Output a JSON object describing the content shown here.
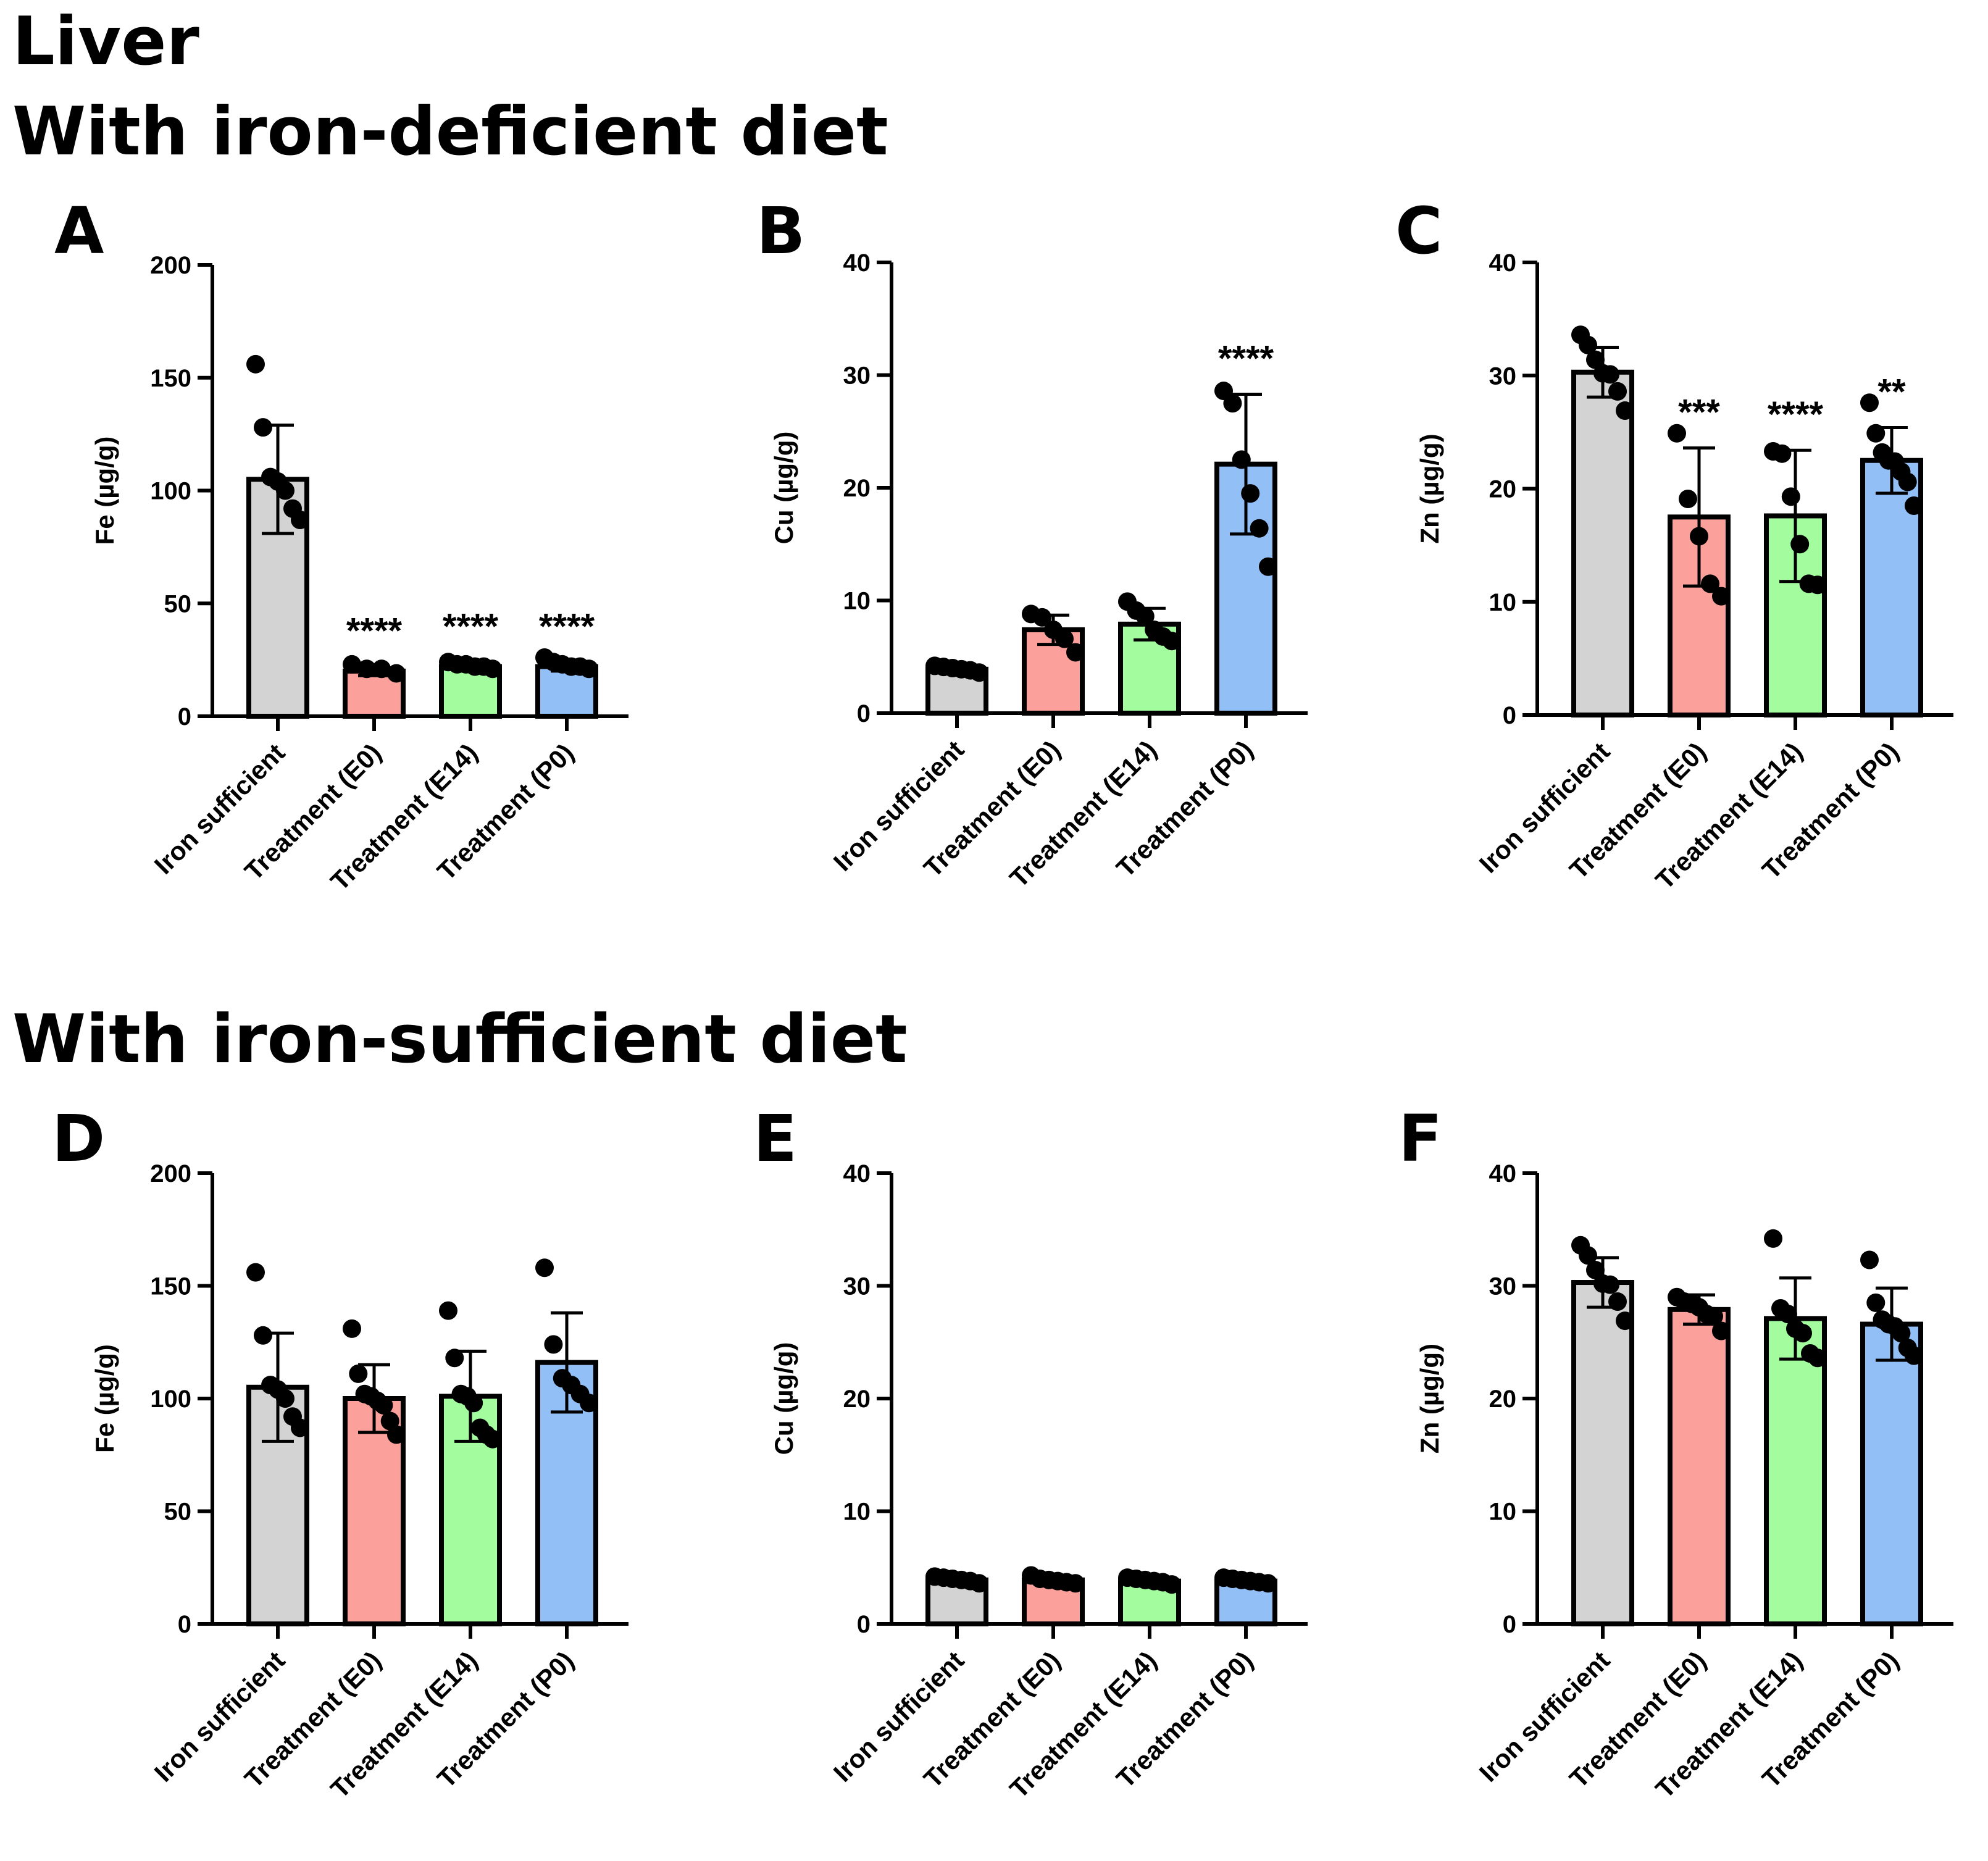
{
  "headings": {
    "tissue": "Liver",
    "deficient": "With iron-deficient diet",
    "sufficient": "With iron-sufficient diet"
  },
  "colors": {
    "iron_sufficient": "#d3d3d3",
    "treatment_e0": "#fca09b",
    "treatment_e14": "#a3fd9f",
    "treatment_p0": "#93bff7",
    "ink": "#000000"
  },
  "chart_data": [
    {
      "panel": "A",
      "type": "bar",
      "diet": "With iron-deficient diet",
      "ylabel": "Fe (µg/g)",
      "ylim": [
        0,
        200
      ],
      "yticks": [
        0,
        50,
        100,
        150,
        200
      ],
      "categories": [
        "Iron sufficient",
        "Treatment (E0)",
        "Treatment (E14)",
        "Treatment (P0)"
      ],
      "values": [
        105,
        20,
        22,
        22
      ],
      "sd": [
        24,
        2,
        2,
        2
      ],
      "points": [
        [
          156,
          128,
          106,
          104,
          100,
          92,
          87
        ],
        [
          23,
          21,
          21,
          19
        ],
        [
          24,
          23,
          23,
          22,
          22,
          21
        ],
        [
          26,
          24,
          23,
          22,
          22,
          21
        ]
      ],
      "significance": [
        "",
        "****",
        "****",
        "****"
      ]
    },
    {
      "panel": "B",
      "type": "bar",
      "diet": "With iron-deficient diet",
      "ylabel": "Cu (µg/g)",
      "ylim": [
        0,
        40
      ],
      "yticks": [
        0,
        10,
        20,
        30,
        40
      ],
      "categories": [
        "Iron sufficient",
        "Treatment (E0)",
        "Treatment (E14)",
        "Treatment (P0)"
      ],
      "values": [
        3.9,
        7.4,
        7.9,
        22.1
      ],
      "sd": [
        0.3,
        1.3,
        1.4,
        6.2
      ],
      "points": [
        [
          4.2,
          4.1,
          4.0,
          3.9,
          3.8,
          3.6
        ],
        [
          8.8,
          8.5,
          7.4,
          6.6,
          5.4
        ],
        [
          9.9,
          9.1,
          8.6,
          7.4,
          6.8,
          6.4
        ],
        [
          28.6,
          27.5,
          22.5,
          19.5,
          16.4,
          13.0
        ]
      ],
      "significance": [
        "",
        "",
        "",
        "****"
      ]
    },
    {
      "panel": "C",
      "type": "bar",
      "diet": "With iron-deficient diet",
      "ylabel": "Zn (µg/g)",
      "ylim": [
        0,
        40
      ],
      "yticks": [
        0,
        10,
        20,
        30,
        40
      ],
      "categories": [
        "Iron sufficient",
        "Treatment (E0)",
        "Treatment (E14)",
        "Treatment (P0)"
      ],
      "values": [
        30.3,
        17.5,
        17.6,
        22.5
      ],
      "sd": [
        2.2,
        6.1,
        5.8,
        2.9
      ],
      "points": [
        [
          33.6,
          32.7,
          31.4,
          30.2,
          30.1,
          28.6,
          26.9
        ],
        [
          24.9,
          19.1,
          15.8,
          11.6,
          10.5
        ],
        [
          23.3,
          23.1,
          19.3,
          15.1,
          11.6,
          11.5
        ],
        [
          27.6,
          24.9,
          23.2,
          22.5,
          22.4,
          21.5,
          20.6,
          18.5
        ]
      ],
      "significance": [
        "",
        "***",
        "****",
        "**"
      ]
    },
    {
      "panel": "D",
      "type": "bar",
      "diet": "With iron-sufficient diet",
      "ylabel": "Fe (µg/g)",
      "ylim": [
        0,
        200
      ],
      "yticks": [
        0,
        50,
        100,
        150,
        200
      ],
      "categories": [
        "Iron sufficient",
        "Treatment (E0)",
        "Treatment (E14)",
        "Treatment (P0)"
      ],
      "values": [
        105,
        100,
        101,
        116
      ],
      "sd": [
        24,
        15,
        20,
        22
      ],
      "points": [
        [
          156,
          128,
          106,
          104,
          100,
          92,
          87
        ],
        [
          131,
          111,
          102,
          101,
          99,
          97,
          90,
          84
        ],
        [
          139,
          118,
          102,
          101,
          98,
          87,
          84,
          82
        ],
        [
          158,
          124,
          109,
          106,
          102,
          98
        ]
      ],
      "significance": [
        "",
        "",
        "",
        ""
      ]
    },
    {
      "panel": "E",
      "type": "bar",
      "diet": "With iron-sufficient diet",
      "ylabel": "Cu (µg/g)",
      "ylim": [
        0,
        40
      ],
      "yticks": [
        0,
        10,
        20,
        30,
        40
      ],
      "categories": [
        "Iron sufficient",
        "Treatment (E0)",
        "Treatment (E14)",
        "Treatment (P0)"
      ],
      "values": [
        3.9,
        3.9,
        3.8,
        3.8
      ],
      "sd": [
        0.3,
        0.3,
        0.3,
        0.3
      ],
      "points": [
        [
          4.2,
          4.1,
          4.0,
          3.9,
          3.8,
          3.6
        ],
        [
          4.3,
          4.0,
          3.9,
          3.8,
          3.7,
          3.6
        ],
        [
          4.1,
          4.0,
          3.9,
          3.8,
          3.7,
          3.5
        ],
        [
          4.1,
          4.0,
          3.9,
          3.8,
          3.7,
          3.6
        ]
      ],
      "significance": [
        "",
        "",
        "",
        ""
      ]
    },
    {
      "panel": "F",
      "type": "bar",
      "diet": "With iron-sufficient diet",
      "ylabel": "Zn (µg/g)",
      "ylim": [
        0,
        40
      ],
      "yticks": [
        0,
        10,
        20,
        30,
        40
      ],
      "categories": [
        "Iron sufficient",
        "Treatment (E0)",
        "Treatment (E14)",
        "Treatment (P0)"
      ],
      "values": [
        30.3,
        27.9,
        27.1,
        26.6
      ],
      "sd": [
        2.2,
        1.3,
        3.6,
        3.2
      ],
      "points": [
        [
          33.6,
          32.7,
          31.4,
          30.2,
          30.1,
          28.6,
          26.9
        ],
        [
          29.0,
          28.6,
          28.4,
          28.1,
          27.5,
          27.3,
          26.0
        ],
        [
          34.2,
          28.0,
          27.5,
          26.2,
          25.8,
          24.0,
          23.6
        ],
        [
          32.3,
          28.5,
          27.0,
          26.6,
          26.4,
          25.8,
          24.5,
          23.8
        ]
      ],
      "significance": [
        "",
        "",
        "",
        ""
      ]
    }
  ]
}
